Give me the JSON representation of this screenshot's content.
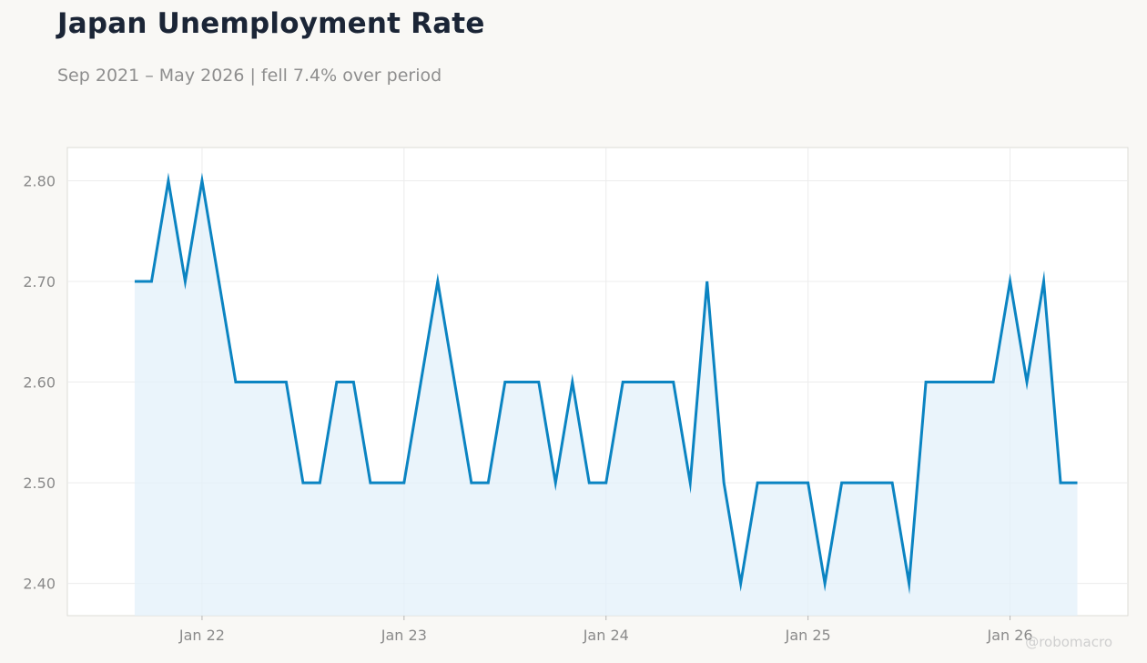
{
  "title": "Japan Unemployment Rate",
  "subtitle": "Sep 2021 – May 2026 | fell 7.4% over period",
  "watermark": "@robomacro",
  "colors": {
    "line": "#0b84c2",
    "fill": "#e3f0fa",
    "grid": "#ececec",
    "frame": "#dcdcd6",
    "plot_bg": "#ffffff",
    "page_bg": "#f9f8f5"
  },
  "chart_data": {
    "type": "area",
    "title": "Japan Unemployment Rate",
    "subtitle": "Sep 2021 – May 2026 | fell 7.4% over period",
    "xlabel": "",
    "ylabel": "",
    "x_start": "2021-09",
    "x_end": "2026-05",
    "x_ticks": [
      {
        "date": "2022-01",
        "label": "Jan 22"
      },
      {
        "date": "2023-01",
        "label": "Jan 23"
      },
      {
        "date": "2024-01",
        "label": "Jan 24"
      },
      {
        "date": "2025-01",
        "label": "Jan 25"
      },
      {
        "date": "2026-01",
        "label": "Jan 26"
      }
    ],
    "xlim": [
      "2021-05",
      "2026-08"
    ],
    "y_ticks": [
      2.4,
      2.5,
      2.6,
      2.7,
      2.8
    ],
    "y_tick_labels": [
      "2.40",
      "2.50",
      "2.60",
      "2.70",
      "2.80"
    ],
    "ylim": [
      2.368,
      2.833
    ],
    "grid": true,
    "series": [
      {
        "values": [
          2.7,
          2.7,
          2.8,
          2.7,
          2.8,
          2.7,
          2.6,
          2.6,
          2.6,
          2.6,
          2.5,
          2.5,
          2.6,
          2.6,
          2.5,
          2.5,
          2.5,
          2.6,
          2.7,
          2.6,
          2.5,
          2.5,
          2.6,
          2.6,
          2.6,
          2.5,
          2.6,
          2.5,
          2.5,
          2.6,
          2.6,
          2.6,
          2.6,
          2.5,
          2.7,
          2.5,
          2.4,
          2.5,
          2.5,
          2.5,
          2.5,
          2.4,
          2.5,
          2.5,
          2.5,
          2.5,
          2.4,
          2.6,
          2.6,
          2.6,
          2.6,
          2.6,
          2.7,
          2.6,
          2.7,
          2.5,
          2.5
        ]
      }
    ]
  }
}
